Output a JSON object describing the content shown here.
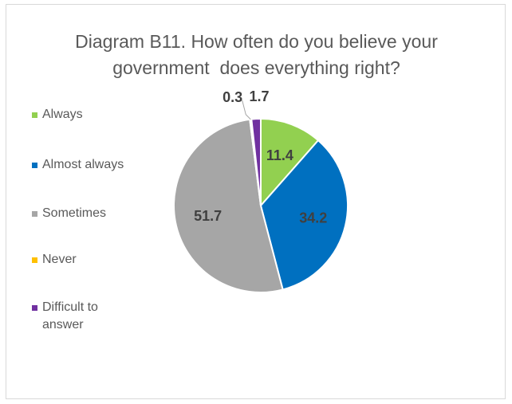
{
  "chart_data": {
    "type": "pie",
    "title_lines": [
      "Diagram B11. How often do you believe your",
      "government  does everything right?"
    ],
    "categories": [
      "Always",
      "Almost always",
      "Sometimes",
      "Never",
      "Difficult to answer"
    ],
    "values": [
      11.4,
      34.2,
      51.7,
      0.3,
      1.7
    ],
    "value_labels": [
      "11.4",
      "34.2",
      "51.7",
      "0.3",
      "1.7"
    ],
    "colors": [
      "#92d050",
      "#0070c0",
      "#a6a6a6",
      "#ffc000",
      "#7030a0"
    ],
    "legend_position": "left",
    "legend_entries": [
      {
        "label": "Always",
        "color": "#92d050"
      },
      {
        "label": "Almost always",
        "color": "#0070c0"
      },
      {
        "label": "Sometimes",
        "color": "#a6a6a6"
      },
      {
        "label": "Never",
        "color": "#ffc000"
      },
      {
        "label": "Difficult to answer",
        "color": "#7030a0"
      }
    ]
  }
}
